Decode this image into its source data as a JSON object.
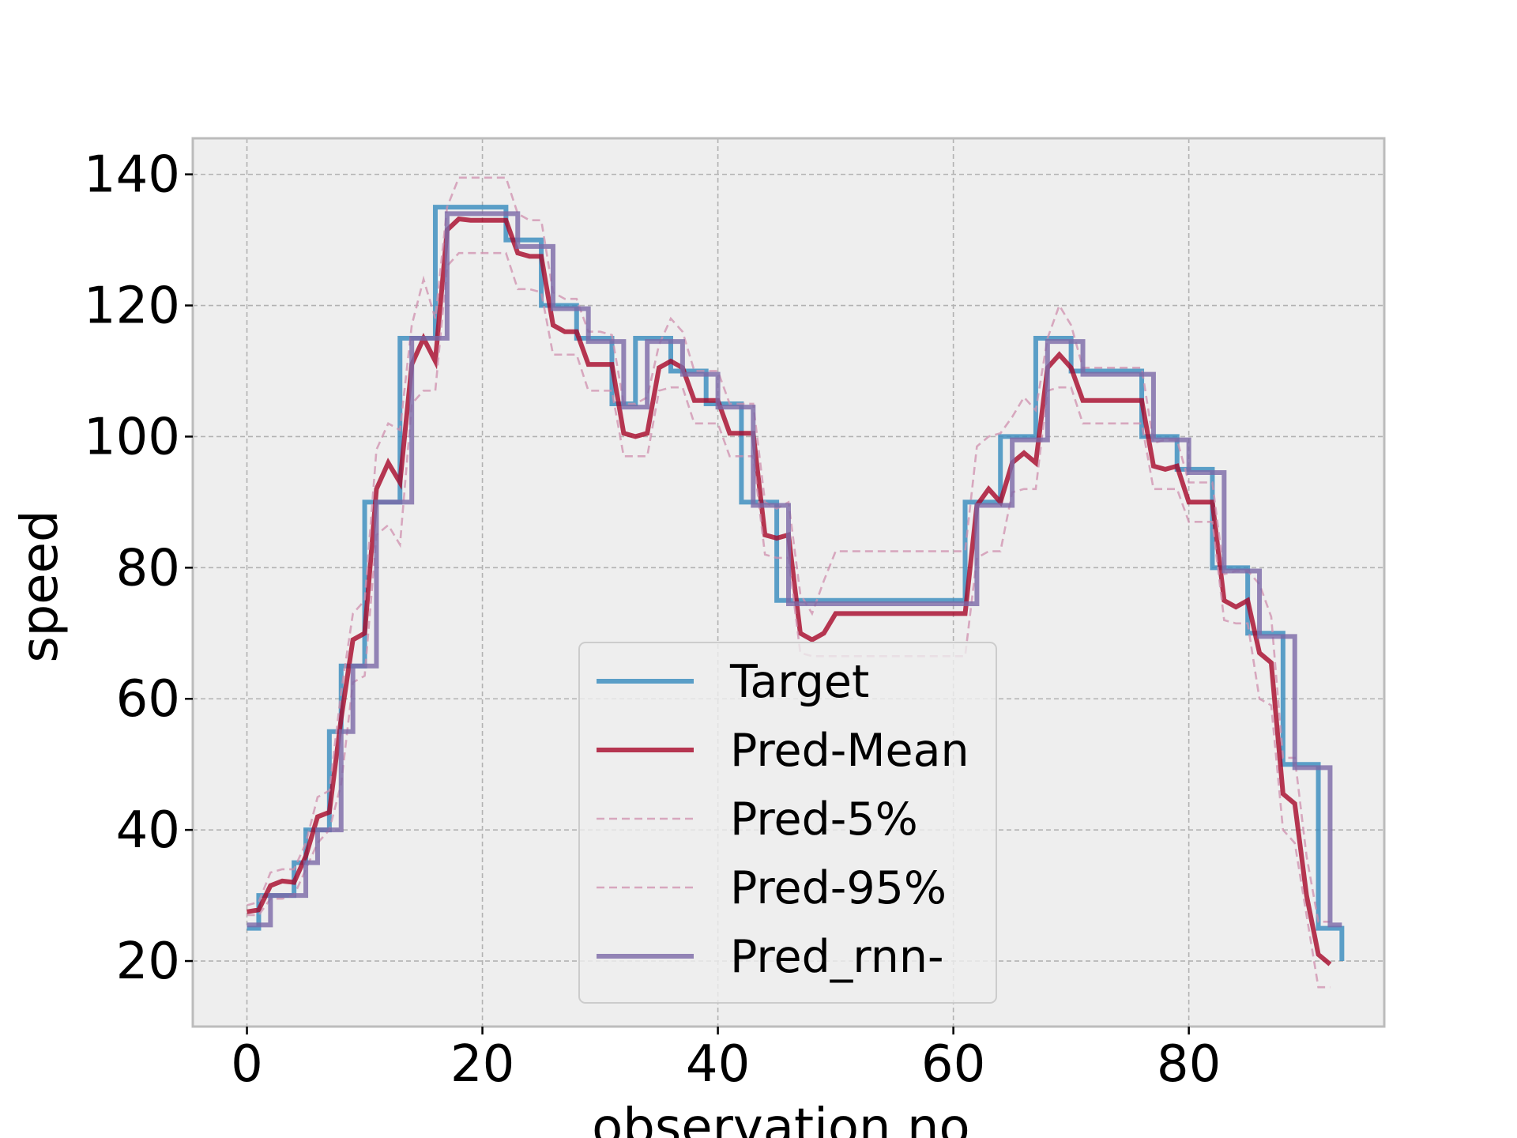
{
  "chart_data": {
    "type": "line",
    "xlabel": "observation no.",
    "ylabel": "speed",
    "xlim": [
      -4.6,
      96.6
    ],
    "ylim": [
      10,
      145.5
    ],
    "xticks": [
      0,
      20,
      40,
      60,
      80
    ],
    "yticks": [
      20,
      40,
      60,
      80,
      100,
      120,
      140
    ],
    "xtick_labels": [
      "0",
      "20",
      "40",
      "60",
      "80"
    ],
    "ytick_labels": [
      "20",
      "40",
      "60",
      "80",
      "100",
      "120",
      "140"
    ],
    "grid": true,
    "legend_position": "lower-center",
    "series": [
      {
        "name": "Target",
        "color": "#348abd",
        "style": "steps-post",
        "values": [
          25,
          30,
          30,
          30,
          35,
          40,
          40,
          55,
          65,
          65,
          90,
          90,
          90,
          115,
          115,
          115,
          135,
          135,
          135,
          135,
          135,
          135,
          130,
          130,
          130,
          120,
          120,
          120,
          115,
          115,
          115,
          105,
          105,
          115,
          115,
          115,
          110,
          110,
          110,
          105,
          105,
          105,
          90,
          90,
          90,
          75,
          75,
          75,
          75,
          75,
          75,
          75,
          75,
          75,
          75,
          75,
          75,
          75,
          75,
          75,
          75,
          90,
          90,
          90,
          100,
          100,
          100,
          115,
          115,
          115,
          110,
          110,
          110,
          110,
          110,
          110,
          100,
          100,
          100,
          95,
          95,
          95,
          80,
          80,
          80,
          70,
          70,
          70,
          50,
          50,
          50,
          25,
          25,
          20
        ]
      },
      {
        "name": "Pred-Mean",
        "color": "#a60628",
        "style": "line",
        "values": [
          27.5,
          27.8,
          31.5,
          32.2,
          32,
          36,
          42,
          42.7,
          57,
          69,
          70,
          92,
          96,
          93,
          111,
          115,
          111.5,
          131.5,
          133.2,
          133,
          133,
          133,
          133,
          128,
          127.5,
          127.5,
          117,
          116,
          116,
          111,
          111,
          111,
          100.5,
          100,
          100.5,
          110.5,
          111.5,
          110.5,
          105.5,
          105.5,
          105.5,
          100.5,
          100.5,
          100.5,
          85,
          84.5,
          85,
          70,
          69,
          70,
          73,
          73,
          73,
          73,
          73,
          73,
          73,
          73,
          73,
          73,
          73,
          73,
          89.5,
          92,
          90,
          96,
          97.5,
          96,
          110.5,
          112.5,
          110.5,
          105.5,
          105.5,
          105.5,
          105.5,
          105.5,
          105.5,
          95.5,
          95,
          95.5,
          90,
          90,
          90,
          75,
          74,
          75,
          67,
          65.5,
          45.5,
          44,
          30,
          21,
          19.5
        ]
      },
      {
        "name": "Pred-5%",
        "color": "#cf8fae",
        "style": "dashed",
        "values": [
          27,
          27,
          29.5,
          29.5,
          30,
          34,
          38,
          40,
          47,
          62.5,
          63.5,
          85,
          86.5,
          83.5,
          105,
          107,
          107,
          126,
          128,
          128,
          128,
          128,
          128,
          122.5,
          122.5,
          122,
          112.5,
          112.5,
          112.5,
          107,
          107,
          107,
          97,
          97,
          97,
          107,
          107.5,
          107.5,
          102,
          102,
          102,
          97,
          97,
          97,
          82,
          81.5,
          81.5,
          67,
          66.5,
          66.5,
          66.5,
          66.5,
          66.5,
          66.5,
          66.5,
          66.5,
          66.5,
          66.5,
          66.5,
          66.5,
          66.5,
          66.5,
          81.5,
          82.5,
          82.5,
          91.5,
          92,
          92,
          107,
          107.5,
          107.5,
          102,
          102,
          102,
          102,
          102,
          102,
          92,
          92,
          92,
          87,
          87,
          87,
          72,
          71.5,
          71.5,
          60,
          59,
          40,
          38,
          27,
          16,
          16
        ]
      },
      {
        "name": "Pred-95%",
        "color": "#cf8fae",
        "style": "dashed",
        "values": [
          28.5,
          29,
          33.5,
          34,
          34,
          38,
          45,
          46,
          61,
          73,
          75,
          98,
          102,
          101,
          117,
          124,
          118,
          135,
          139.5,
          139.5,
          139.5,
          139.5,
          139.5,
          134,
          133,
          133,
          122,
          121,
          121,
          116,
          116,
          115.5,
          105,
          105,
          106,
          114,
          118,
          116,
          110,
          110,
          110,
          105,
          105,
          105,
          90,
          89,
          90,
          76,
          73,
          78,
          82.5,
          82.5,
          82.5,
          82.5,
          82.5,
          82.5,
          82.5,
          82.5,
          82.5,
          82.5,
          82.5,
          82.5,
          98.5,
          100,
          100.5,
          103,
          106,
          104,
          115,
          120,
          117,
          110.5,
          110.5,
          110.5,
          110.5,
          110.5,
          110.5,
          99,
          99.5,
          99.5,
          93,
          93,
          93,
          79,
          79.5,
          79.5,
          77.5,
          72.5,
          51,
          51,
          36,
          26,
          26
        ]
      },
      {
        "name": "Pred_rnn-",
        "color": "#7a68a6",
        "style": "steps-post",
        "values": [
          25.5,
          25.5,
          30,
          30,
          30,
          35,
          40,
          40,
          55,
          65,
          65,
          90,
          90,
          90,
          115,
          115,
          115,
          134,
          134,
          134,
          134,
          134,
          134,
          129,
          129,
          129,
          119.5,
          119.5,
          119.5,
          114.5,
          114.5,
          114.5,
          104.5,
          104.5,
          114.5,
          114.5,
          114.5,
          109.5,
          109.5,
          109.5,
          104.5,
          104.5,
          104.5,
          89.5,
          89.5,
          89.5,
          74.5,
          74.5,
          74.5,
          74.5,
          74.5,
          74.5,
          74.5,
          74.5,
          74.5,
          74.5,
          74.5,
          74.5,
          74.5,
          74.5,
          74.5,
          74.5,
          89.5,
          89.5,
          89.5,
          99.5,
          99.5,
          99.5,
          114.5,
          114.5,
          114.5,
          109.5,
          109.5,
          109.5,
          109.5,
          109.5,
          109.5,
          99.5,
          99.5,
          99.5,
          94.5,
          94.5,
          94.5,
          79.5,
          79.5,
          79.5,
          69.5,
          69.5,
          69.5,
          49.5,
          49.5,
          49.5,
          25.5,
          25.5
        ]
      }
    ]
  }
}
